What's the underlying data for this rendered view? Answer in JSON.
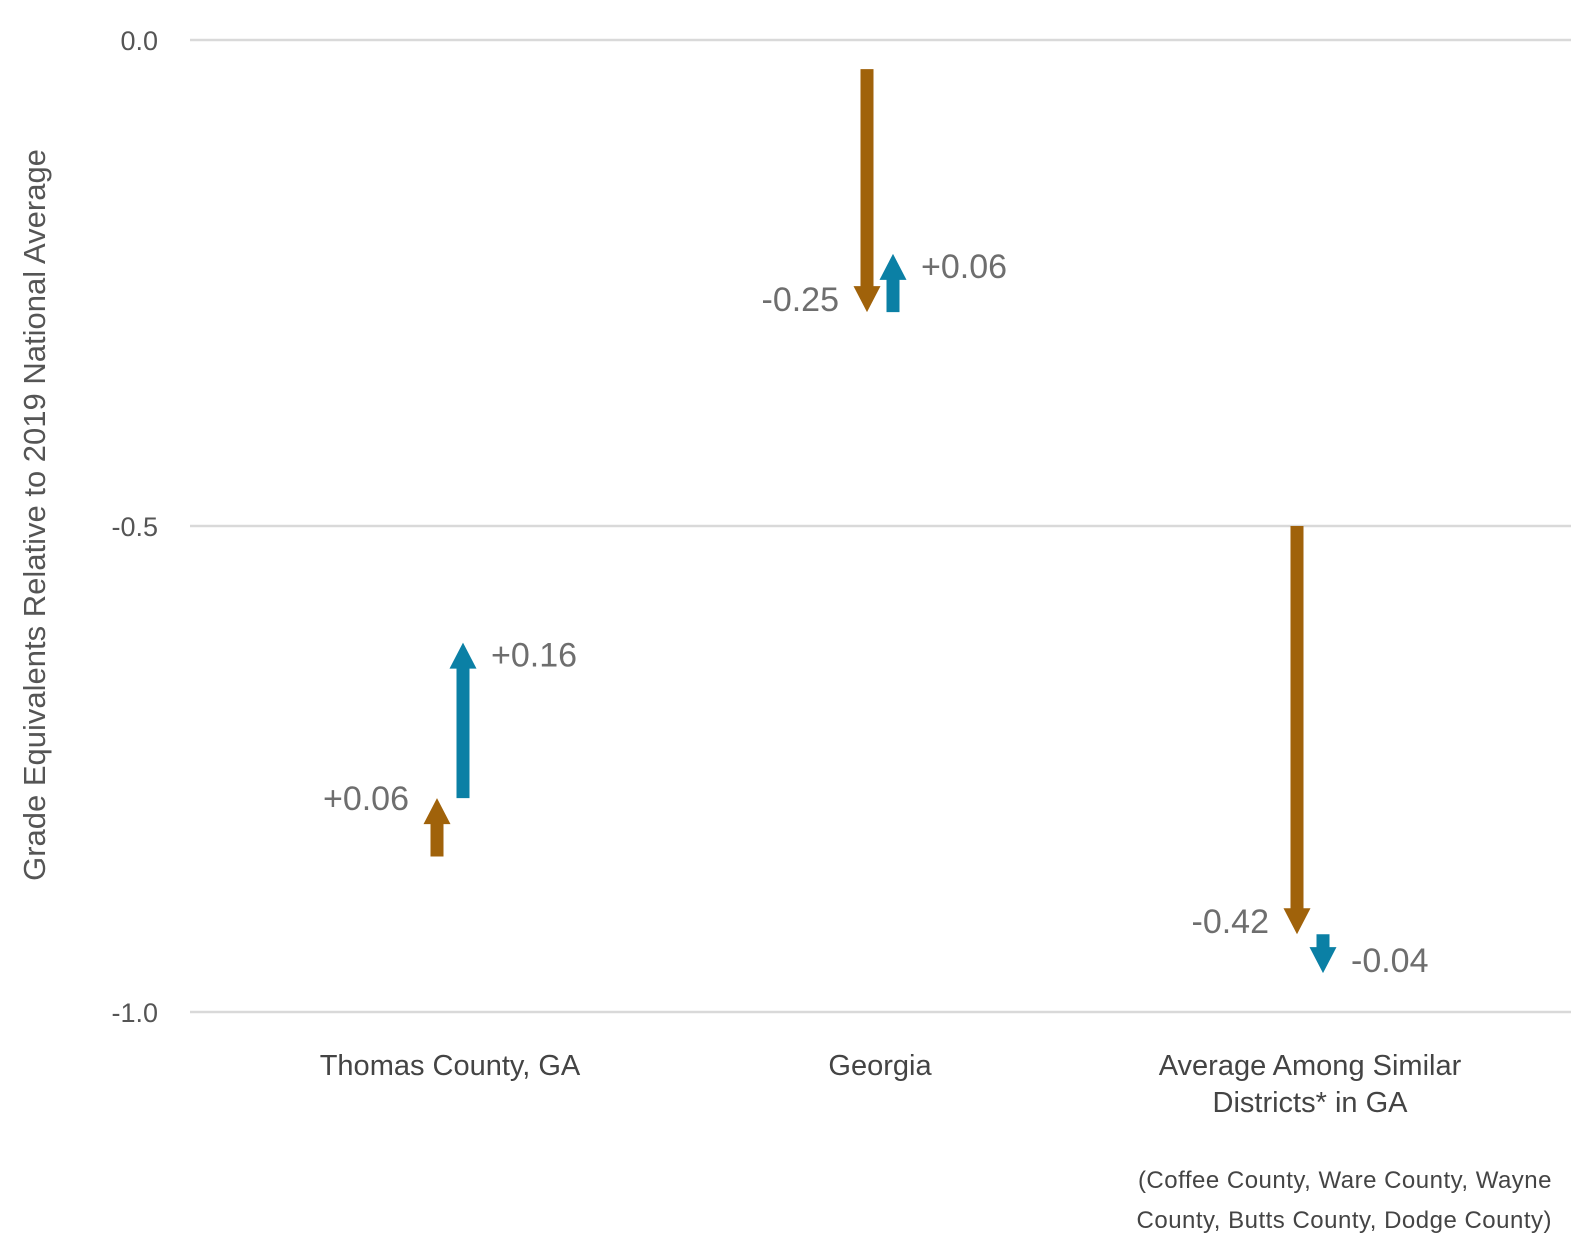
{
  "chart_data": {
    "type": "arrow",
    "ylabel": "Grade Equivalents Relative to 2019 National Average",
    "xlabel": "",
    "ylim": [
      -1.0,
      0.0
    ],
    "yticks": [
      {
        "value": 0.0,
        "label": "0.0"
      },
      {
        "value": -0.5,
        "label": "-0.5"
      },
      {
        "value": -1.0,
        "label": "-1.0"
      }
    ],
    "grid": true,
    "colors": {
      "first_period": "#a0620a",
      "second_period": "#0b80a5",
      "grid": "#d9d9d9"
    },
    "categories": [
      {
        "label_lines": [
          "Thomas County, GA"
        ],
        "arrows": [
          {
            "series": 0,
            "start": -0.84,
            "end": -0.78,
            "label": "+0.06"
          },
          {
            "series": 1,
            "start": -0.78,
            "end": -0.62,
            "label": "+0.16"
          }
        ]
      },
      {
        "label_lines": [
          "Georgia"
        ],
        "arrows": [
          {
            "series": 0,
            "start": -0.03,
            "end": -0.28,
            "label": "-0.25"
          },
          {
            "series": 1,
            "start": -0.28,
            "end": -0.22,
            "label": "+0.06"
          }
        ]
      },
      {
        "label_lines": [
          "Average Among Similar",
          "Districts* in GA"
        ],
        "arrows": [
          {
            "series": 0,
            "start": -0.5,
            "end": -0.92,
            "label": "-0.42"
          },
          {
            "series": 1,
            "start": -0.92,
            "end": -0.96,
            "label": "-0.04"
          }
        ]
      }
    ],
    "footnote_lines": [
      "(Coffee County, Ware County, Wayne",
      "County, Butts County, Dodge County)"
    ]
  }
}
